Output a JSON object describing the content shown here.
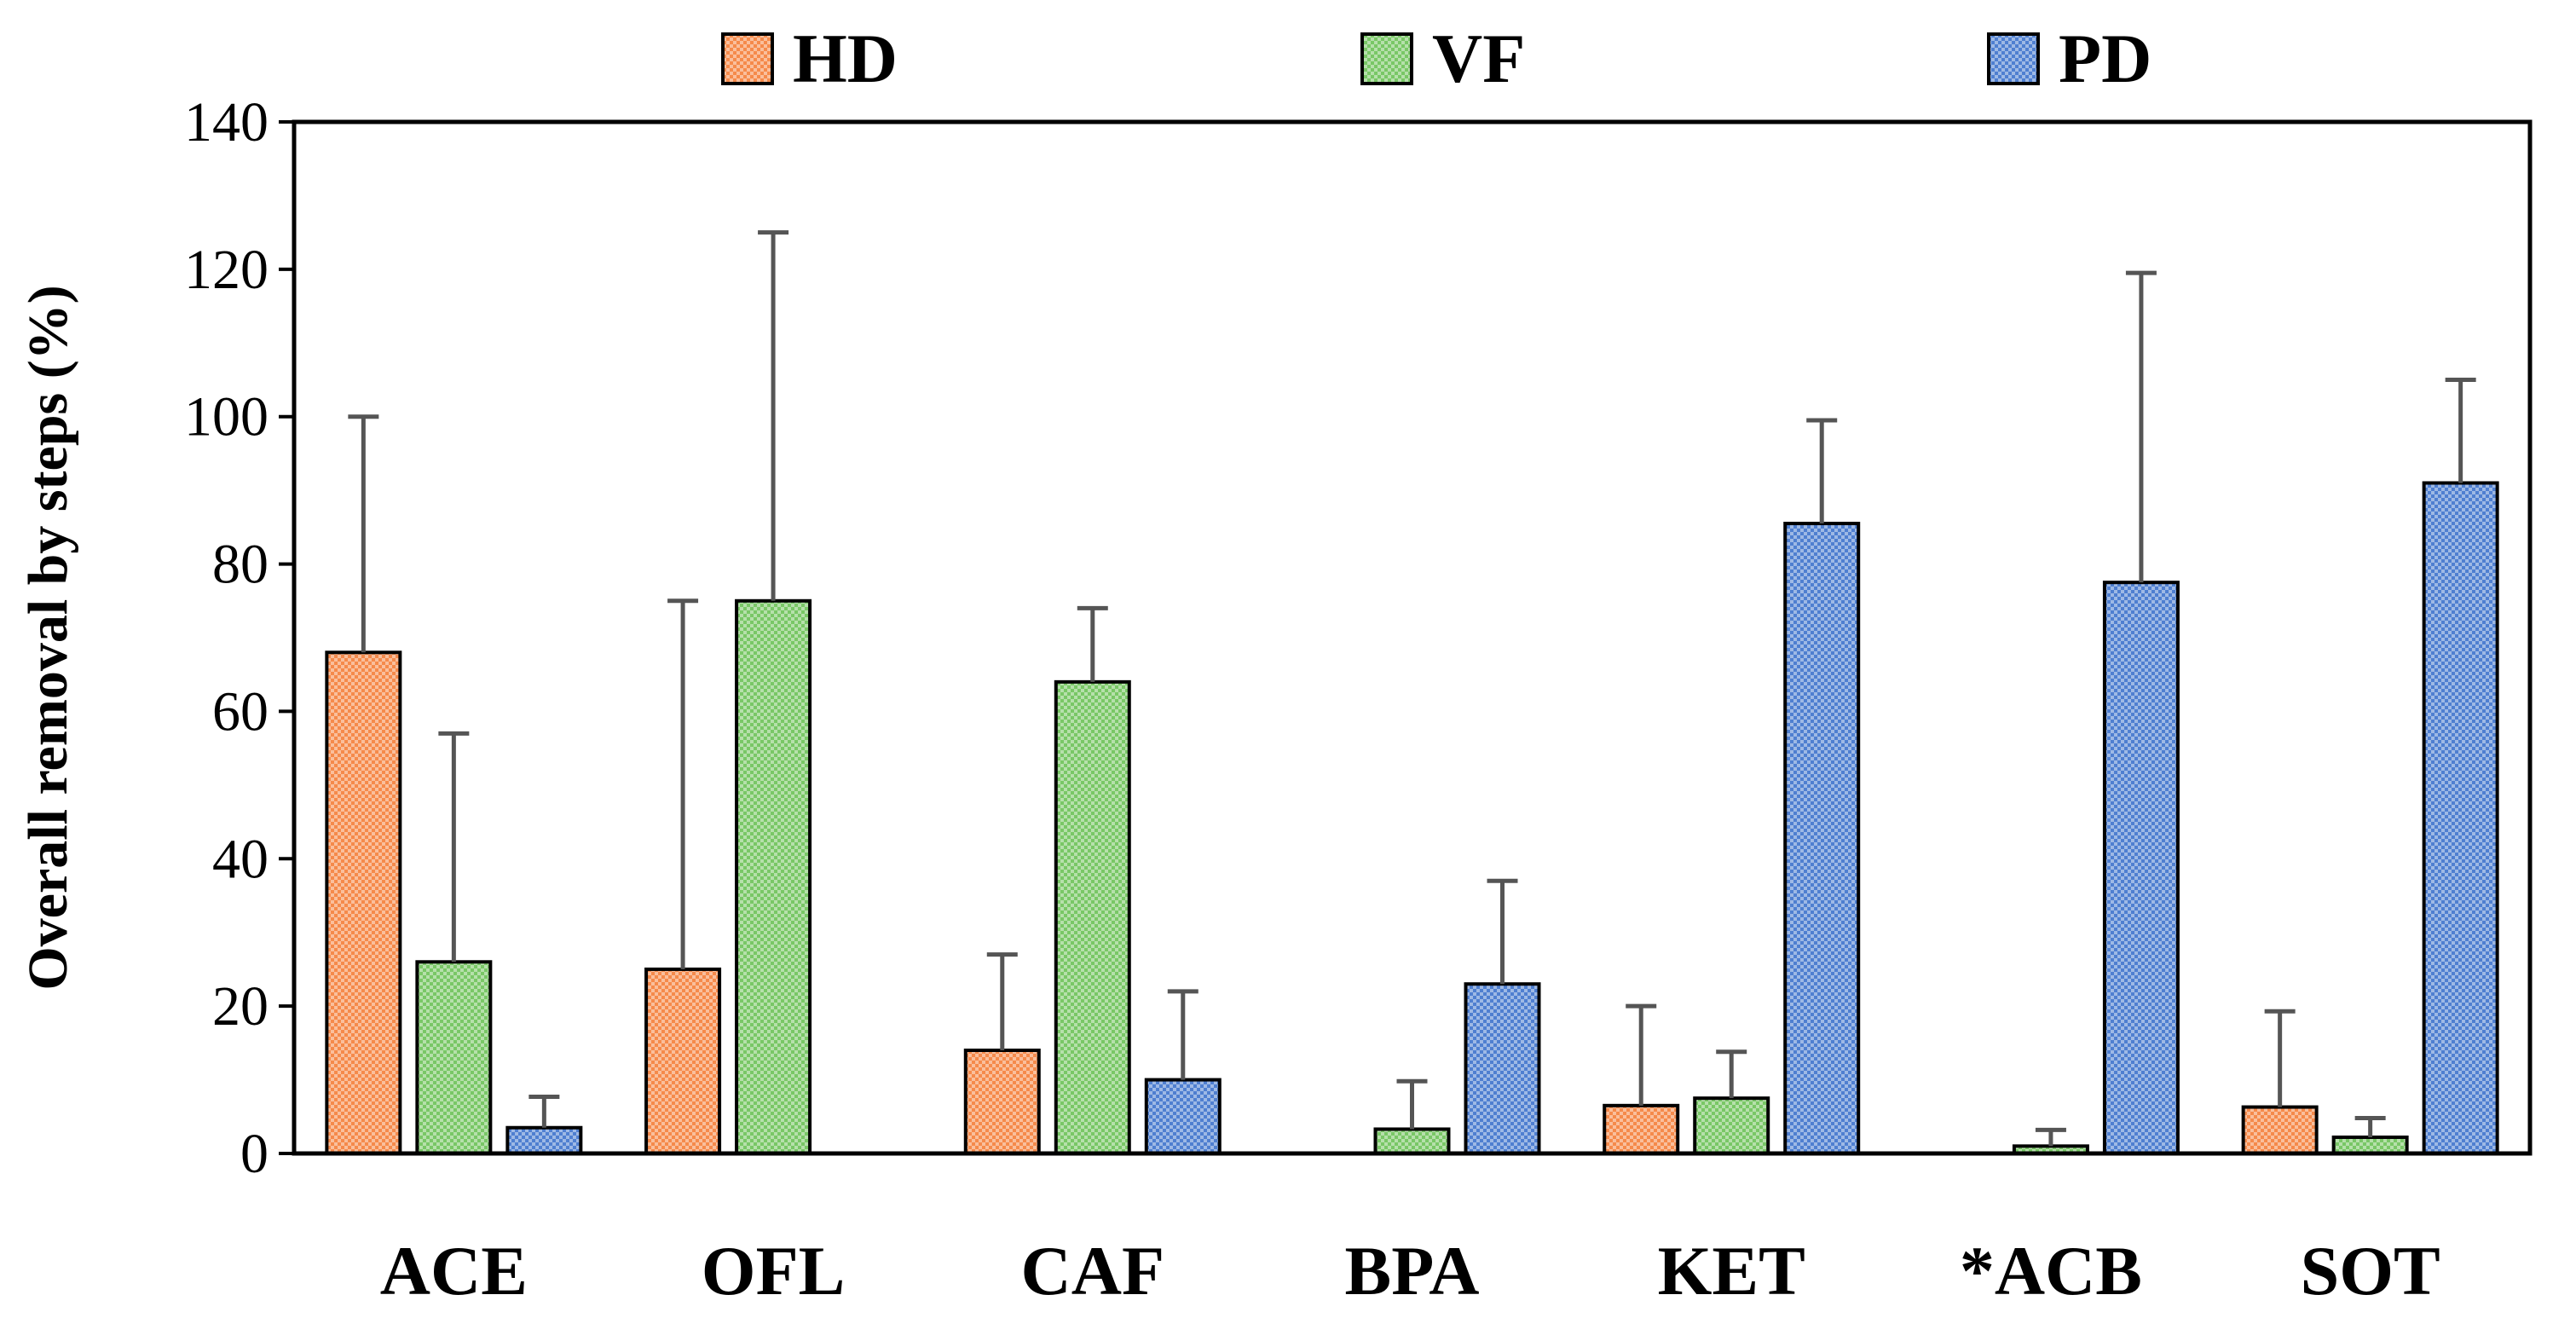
{
  "chart_data": {
    "type": "bar",
    "title": "",
    "xlabel": "",
    "ylabel": "Overall removal by steps (%)",
    "ylim": [
      0,
      140
    ],
    "yticks": [
      0,
      20,
      40,
      60,
      80,
      100,
      120,
      140
    ],
    "grid": false,
    "legend_position": "top",
    "categories": [
      "ACE",
      "OFL",
      "CAF",
      "BPA",
      "KET",
      "*ACB",
      "SOT"
    ],
    "series": [
      {
        "name": "HD",
        "color": "#f58a4b",
        "values": [
          68,
          25,
          14,
          null,
          6.5,
          null,
          6.3
        ],
        "error": [
          32,
          50,
          13,
          null,
          13.5,
          null,
          13
        ]
      },
      {
        "name": "VF",
        "color": "#79c766",
        "values": [
          26,
          75,
          64,
          3.3,
          7.5,
          1,
          2.2
        ],
        "error": [
          31,
          50,
          10,
          6.5,
          6.3,
          2.2,
          2.6
        ]
      },
      {
        "name": "PD",
        "color": "#4f7fd0",
        "values": [
          3.5,
          null,
          10,
          23,
          85.5,
          77.5,
          91
        ],
        "error": [
          4.2,
          null,
          12,
          14,
          14,
          42,
          14
        ]
      }
    ]
  }
}
